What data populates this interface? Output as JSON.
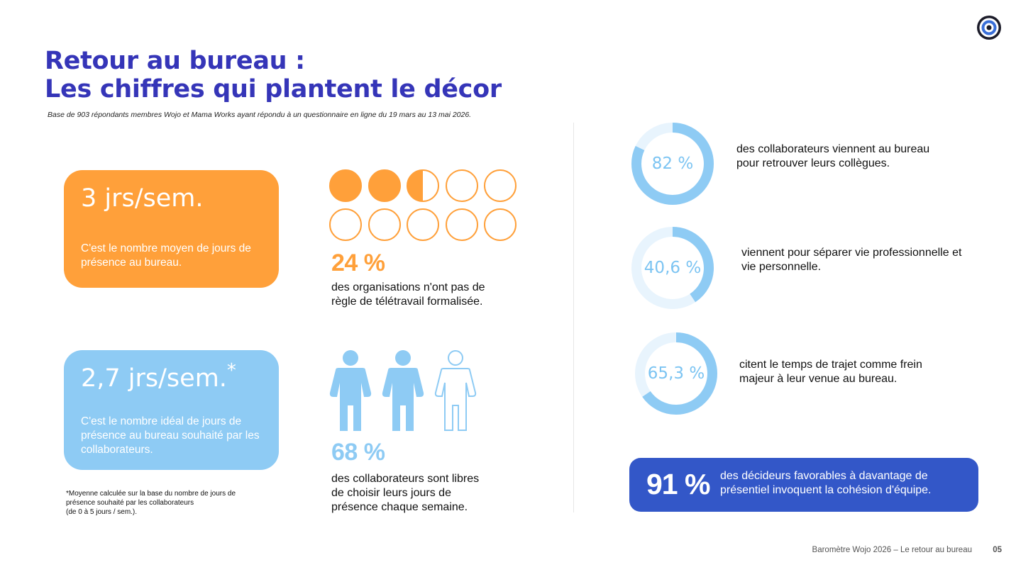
{
  "header": {
    "title_line1": "Retour au bureau :",
    "title_line2": "Les chiffres qui plantent le décor",
    "subtitle": "Base de 903  répondants membres Wojo et Mama Works ayant répondu à un questionnaire en ligne du 19 mars au 13 mai 2026."
  },
  "logo": {
    "icon": "target-icon"
  },
  "cards": {
    "presence": {
      "value": "3 jrs/sem.",
      "text": "C'est le nombre moyen de jours de présence au bureau.",
      "color": "#ffa03a"
    },
    "ideal": {
      "value": "2,7 jrs/sem.",
      "marker": "*",
      "text": "C'est le nombre idéal de jours de présence au bureau souhaité par les collaborateurs.",
      "color": "#8ecbf4"
    }
  },
  "footnote": {
    "line1": "*Moyenne calculée sur la base du nombre de jours de",
    "line2": "présence souhaité par les collaborateurs",
    "line3": "(de 0 à 5 jours / sem.)."
  },
  "stats": {
    "organisations": {
      "value": "24 %",
      "fraction": 0.24,
      "line1": "des organisations n'ont pas de",
      "line2": "règle de télétravail formalisée.",
      "color": "#ffa03a"
    },
    "collaborateurs": {
      "value": "68 %",
      "fraction": 0.68,
      "line1": "des collaborateurs sont libres",
      "line2": "de choisir leurs jours de",
      "line3": "présence chaque semaine.",
      "color": "#8ecbf4"
    }
  },
  "donuts": [
    {
      "label": "82 %",
      "fraction": 0.82,
      "line1": "des collaborateurs viennent au bureau",
      "line2": "pour retrouver leurs collègues."
    },
    {
      "label": "40,6 %",
      "fraction": 0.406,
      "line1": "viennent pour séparer vie professionnelle et",
      "line2": "vie personnelle."
    },
    {
      "label": "65,3 %",
      "fraction": 0.653,
      "line1": "citent le temps de trajet comme frein",
      "line2": "majeur à leur venue au bureau."
    }
  ],
  "highlight": {
    "value": "91 %",
    "line1": "des décideurs favorables à davantage de",
    "line2": "présentiel invoquent la cohésion d'équipe.",
    "color": "#3357c8"
  },
  "footer": {
    "text": "Baromètre Wojo 2026 – Le retour au bureau",
    "page": "05"
  }
}
